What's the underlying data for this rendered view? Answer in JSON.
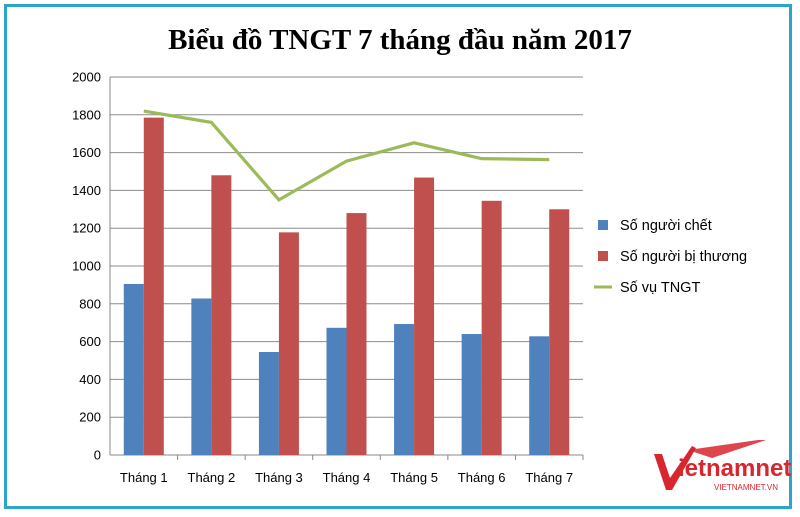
{
  "chart_data": {
    "type": "bar",
    "title": "Biểu đồ TNGT 7 tháng đầu năm 2017",
    "categories": [
      "Tháng 1",
      "Tháng 2",
      "Tháng 3",
      "Tháng 4",
      "Tháng 5",
      "Tháng 6",
      "Tháng 7"
    ],
    "series": [
      {
        "name": "Số người chết",
        "kind": "bar",
        "color": "#4f81bd",
        "values": [
          905,
          828,
          545,
          673,
          693,
          640,
          628
        ]
      },
      {
        "name": "Số người bị thương",
        "kind": "bar",
        "color": "#c0504d",
        "values": [
          1785,
          1480,
          1178,
          1280,
          1468,
          1345,
          1300
        ]
      },
      {
        "name": "Số vụ TNGT",
        "kind": "line",
        "color": "#9bbb59",
        "values": [
          1820,
          1760,
          1350,
          1555,
          1652,
          1568,
          1563
        ]
      }
    ],
    "yticks": [
      "0",
      "200",
      "400",
      "600",
      "800",
      "1000",
      "1200",
      "1400",
      "1600",
      "1800",
      "2000"
    ],
    "ylim": [
      0,
      2000
    ],
    "grid": true,
    "legend": "right",
    "xlabel": "",
    "ylabel": ""
  },
  "watermark": {
    "text": "vietnamnet",
    "subtext": "VIETNAMNET.VN",
    "color": "#d7262e"
  }
}
